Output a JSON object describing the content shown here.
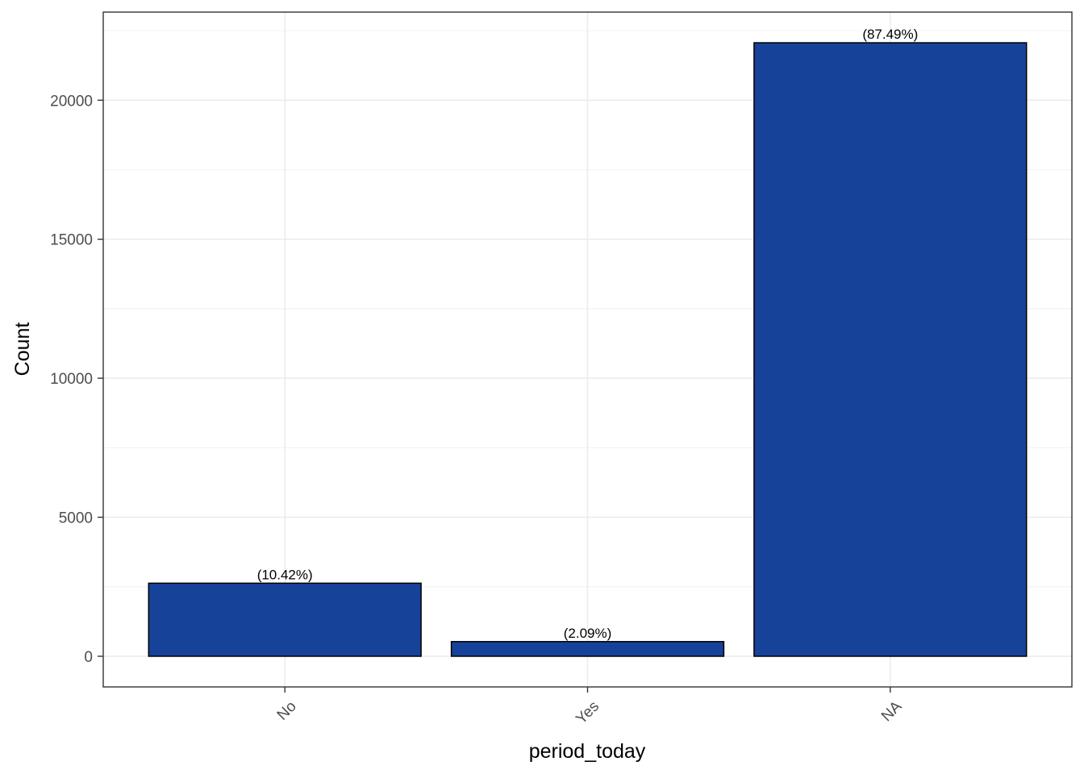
{
  "chart_data": {
    "type": "bar",
    "xlabel": "period_today",
    "ylabel": "Count",
    "categories": [
      "No",
      "Yes",
      "NA"
    ],
    "values": [
      2628,
      527,
      22066
    ],
    "labels": [
      "(10.42%)",
      "(2.09%)",
      "(87.49%)"
    ],
    "ylim": [
      -1103,
      23169
    ],
    "yticks": [
      0,
      5000,
      10000,
      15000,
      20000
    ],
    "ytick_labels": [
      "0",
      "5000",
      "10000",
      "15000",
      "20000"
    ],
    "grid": true,
    "legend": "none",
    "colors": {
      "bar_fill": "#174299",
      "bar_stroke": "#000000",
      "grid_major": "#ebebeb",
      "grid_minor": "#f3f3f3",
      "panel_border": "#333333"
    }
  }
}
